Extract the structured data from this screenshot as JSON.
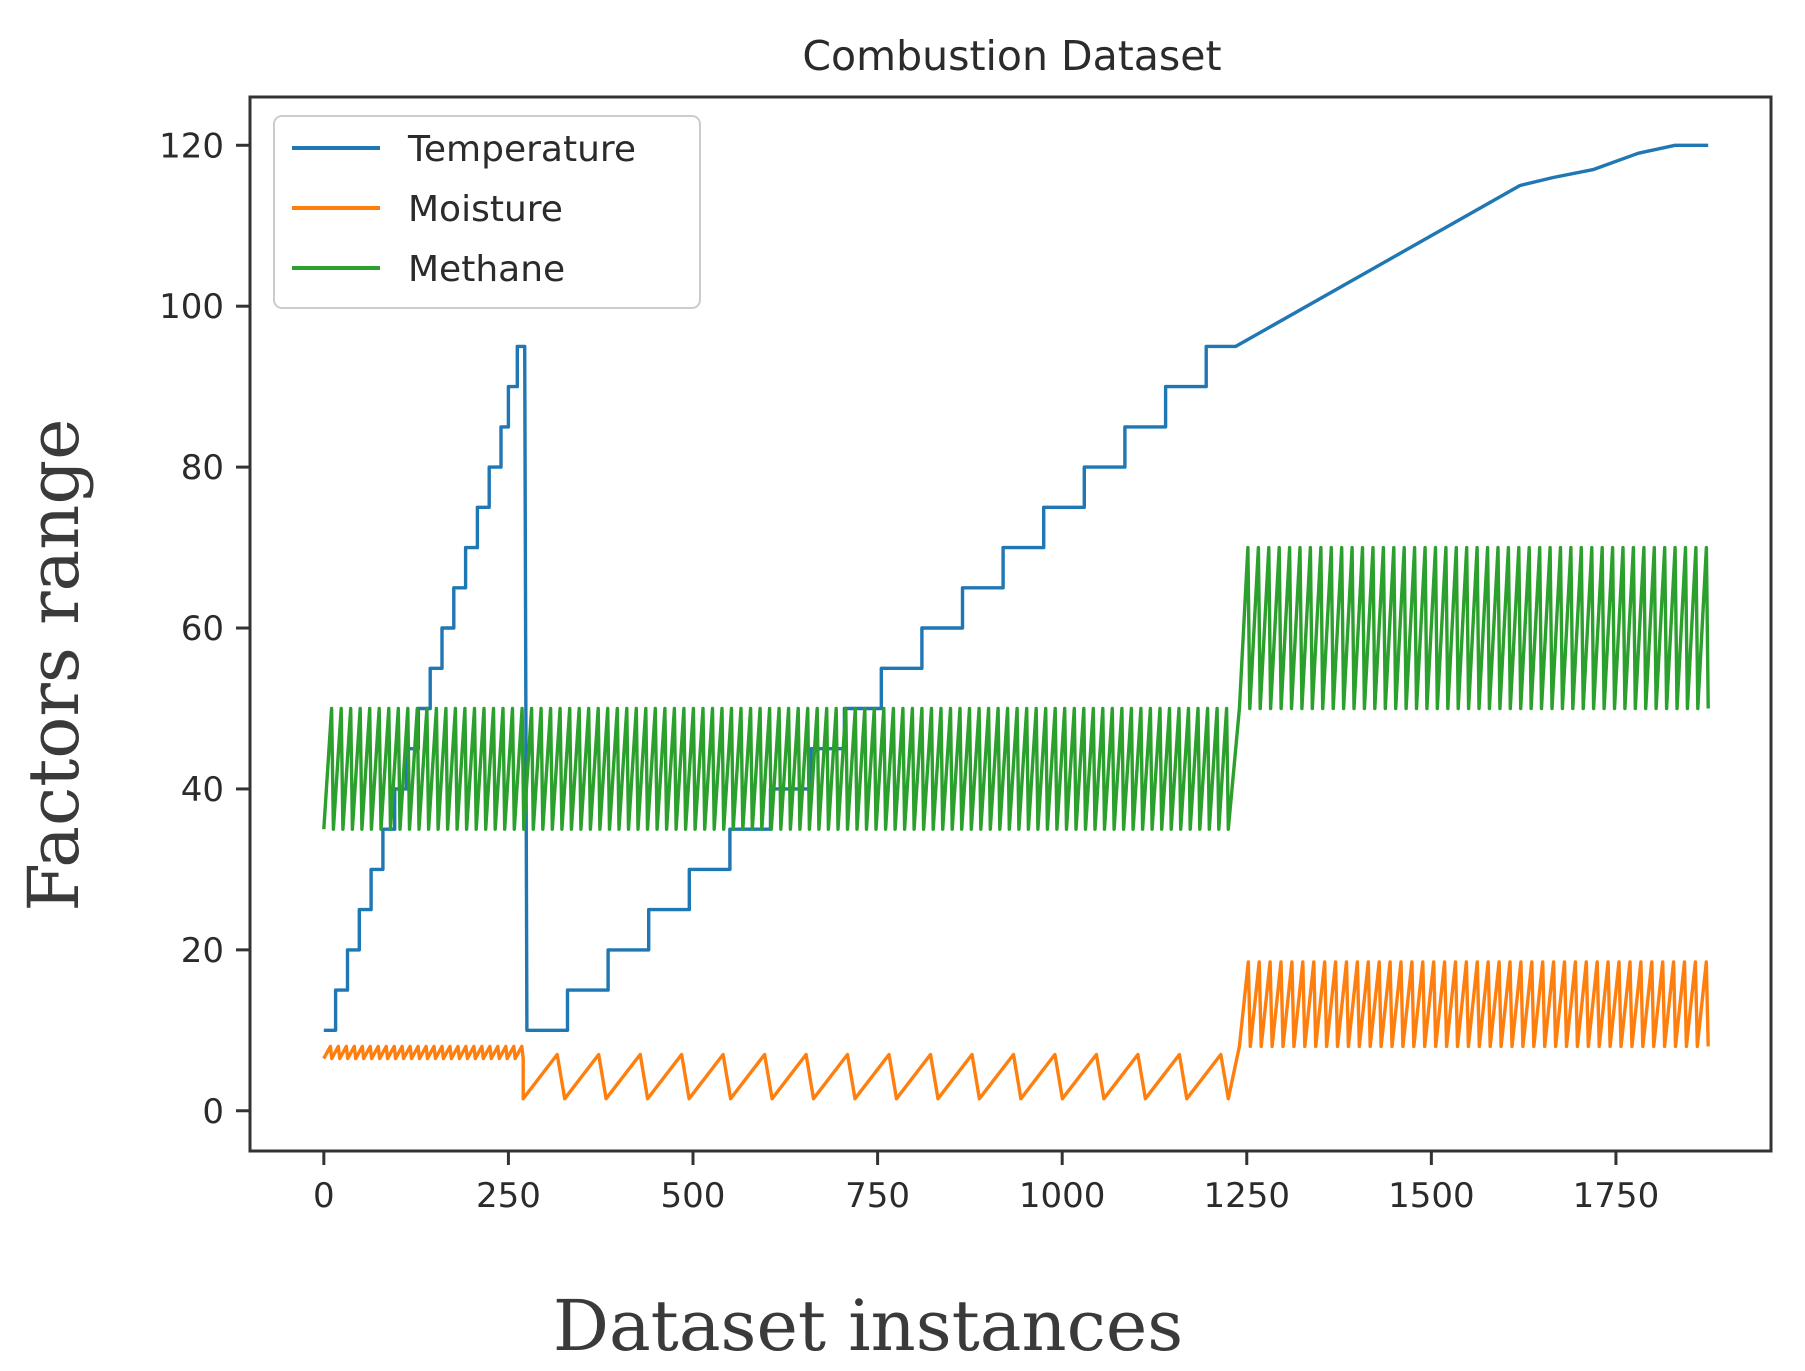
{
  "chart_data": {
    "type": "line",
    "title": "Combustion Dataset",
    "xlabel": "Dataset instances",
    "ylabel": "Factors range",
    "xlim": [
      -100,
      1960
    ],
    "ylim": [
      -5,
      126
    ],
    "xticks": [
      0,
      250,
      500,
      750,
      1000,
      1250,
      1500,
      1750
    ],
    "xtick_labels": [
      "0",
      "250",
      "500",
      "750",
      "1000",
      "1250",
      "1500",
      "1750"
    ],
    "yticks": [
      0,
      20,
      40,
      60,
      80,
      100,
      120
    ],
    "ytick_labels": [
      "0",
      "20",
      "40",
      "60",
      "80",
      "100",
      "120"
    ],
    "grid": false,
    "legend_position": "top-left",
    "series": [
      {
        "name": "Temperature",
        "color": "#1f77b4",
        "style": "step",
        "points": [
          [
            0,
            10
          ],
          [
            16,
            10
          ],
          [
            16,
            15
          ],
          [
            32,
            15
          ],
          [
            32,
            20
          ],
          [
            48,
            20
          ],
          [
            48,
            25
          ],
          [
            64,
            25
          ],
          [
            64,
            30
          ],
          [
            80,
            30
          ],
          [
            80,
            35
          ],
          [
            96,
            35
          ],
          [
            96,
            40
          ],
          [
            112,
            40
          ],
          [
            112,
            45
          ],
          [
            128,
            45
          ],
          [
            128,
            50
          ],
          [
            144,
            50
          ],
          [
            144,
            55
          ],
          [
            160,
            55
          ],
          [
            160,
            60
          ],
          [
            176,
            60
          ],
          [
            176,
            65
          ],
          [
            192,
            65
          ],
          [
            192,
            70
          ],
          [
            208,
            70
          ],
          [
            208,
            75
          ],
          [
            224,
            75
          ],
          [
            224,
            80
          ],
          [
            240,
            80
          ],
          [
            240,
            85
          ],
          [
            250,
            85
          ],
          [
            250,
            90
          ],
          [
            262,
            90
          ],
          [
            262,
            95
          ],
          [
            272,
            95
          ],
          [
            275,
            10
          ],
          [
            330,
            10
          ],
          [
            330,
            15
          ],
          [
            385,
            15
          ],
          [
            385,
            20
          ],
          [
            440,
            20
          ],
          [
            440,
            25
          ],
          [
            495,
            25
          ],
          [
            495,
            30
          ],
          [
            550,
            30
          ],
          [
            550,
            35
          ],
          [
            605,
            35
          ],
          [
            605,
            40
          ],
          [
            660,
            40
          ],
          [
            660,
            45
          ],
          [
            705,
            45
          ],
          [
            705,
            50
          ],
          [
            755,
            50
          ],
          [
            755,
            55
          ],
          [
            810,
            55
          ],
          [
            810,
            60
          ],
          [
            865,
            60
          ],
          [
            865,
            65
          ],
          [
            920,
            65
          ],
          [
            920,
            70
          ],
          [
            975,
            70
          ],
          [
            975,
            75
          ],
          [
            1030,
            75
          ],
          [
            1030,
            80
          ],
          [
            1085,
            80
          ],
          [
            1085,
            85
          ],
          [
            1140,
            85
          ],
          [
            1140,
            90
          ],
          [
            1195,
            90
          ],
          [
            1195,
            95
          ],
          [
            1235,
            95
          ],
          [
            1620,
            115
          ],
          [
            1665,
            116
          ],
          [
            1720,
            117
          ],
          [
            1780,
            119
          ],
          [
            1830,
            120
          ],
          [
            1875,
            120
          ]
        ]
      },
      {
        "name": "Moisture",
        "color": "#ff7f0e",
        "style": "sawtooth",
        "segments": [
          {
            "x_start": 0,
            "x_end": 270,
            "low": 6.5,
            "high": 8,
            "count": 25
          },
          {
            "x_start": 270,
            "x_end": 1225,
            "low": 1.5,
            "high": 7,
            "count": 17
          },
          {
            "x_start": 1240,
            "x_end": 1875,
            "low": 8,
            "high": 18.5,
            "count": 43
          }
        ]
      },
      {
        "name": "Methane",
        "color": "#2ca02c",
        "style": "sawtooth",
        "segments": [
          {
            "x_start": 0,
            "x_end": 1225,
            "low": 35,
            "high": 50,
            "count": 95
          },
          {
            "x_start": 1240,
            "x_end": 1875,
            "low": 50,
            "high": 70,
            "count": 45
          }
        ]
      }
    ]
  }
}
